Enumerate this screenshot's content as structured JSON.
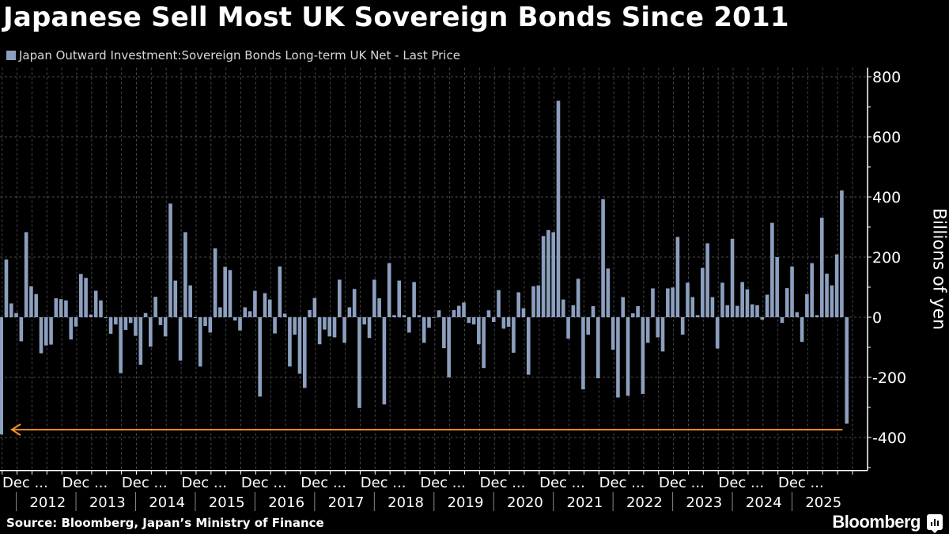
{
  "title": "Japanese Sell Most UK Sovereign Bonds Since 2011",
  "source": "Source: Bloomberg, Japan’s Ministry of Finance",
  "brand": "Bloomberg",
  "colors": {
    "bar": "#8c9fbf",
    "arrow": "#f0922b",
    "background": "#000000",
    "grid": "#4a4a4a"
  },
  "chart_data": {
    "type": "bar",
    "title": "Japanese Sell Most UK Sovereign Bonds Since 2011",
    "legend": {
      "placement": "top-left",
      "entries": [
        "Japan Outward Investment:Sovereign Bonds Long-term UK Net - Last Price"
      ]
    },
    "series": [
      {
        "name": "Japan Outward Investment:Sovereign Bonds Long-term UK Net - Last Price",
        "values": [
          -390,
          192,
          46,
          14,
          -80,
          283,
          103,
          77,
          -120,
          -94,
          -91,
          63,
          60,
          56,
          -74,
          -31,
          144,
          131,
          9,
          88,
          56,
          -3,
          -55,
          -24,
          -186,
          -42,
          -19,
          -62,
          -158,
          14,
          -98,
          68,
          -26,
          -64,
          378,
          122,
          -144,
          283,
          106,
          -3,
          -164,
          -29,
          -51,
          229,
          33,
          168,
          157,
          -11,
          -44,
          33,
          20,
          88,
          -264,
          80,
          59,
          -54,
          169,
          12,
          -164,
          -58,
          -188,
          -235,
          24,
          64,
          -90,
          -41,
          -64,
          -67,
          125,
          -85,
          33,
          94,
          -302,
          -24,
          -69,
          125,
          63,
          -290,
          180,
          7,
          122,
          7,
          -51,
          117,
          7,
          -85,
          -35,
          0,
          23,
          -103,
          -200,
          24,
          38,
          49,
          -19,
          -24,
          -90,
          -169,
          23,
          -16,
          90,
          -38,
          -32,
          -118,
          83,
          30,
          -191,
          103,
          106,
          270,
          290,
          283,
          720,
          59,
          -71,
          40,
          128,
          -240,
          -58,
          37,
          -203,
          393,
          162,
          -108,
          -267,
          67,
          -261,
          13,
          37,
          -255,
          -85,
          96,
          -67,
          -114,
          96,
          99,
          267,
          -58,
          115,
          67,
          7,
          164,
          246,
          67,
          -104,
          115,
          40,
          261,
          38,
          117,
          93,
          43,
          40,
          -8,
          75,
          314,
          200,
          -19,
          97,
          169,
          17,
          -82,
          77,
          180,
          7,
          331,
          145,
          106,
          209,
          422,
          -354
        ]
      }
    ],
    "x_tick_labels": [
      "Dec ...",
      "Dec ...",
      "Dec ...",
      "Dec ...",
      "Dec ...",
      "Dec ...",
      "Dec ...",
      "Dec ...",
      "Dec ...",
      "Dec ...",
      "Dec ...",
      "Dec ...",
      "Dec ...",
      "Dec ..."
    ],
    "year_labels": [
      "2012",
      "2013",
      "2014",
      "2015",
      "2016",
      "2017",
      "2018",
      "2019",
      "2020",
      "2021",
      "2022",
      "2023",
      "2024",
      "2025"
    ],
    "ylabel": "Billions of yen",
    "y_ticks": [
      800,
      600,
      400,
      200,
      0,
      -200,
      -400
    ],
    "ylim": [
      -510,
      830
    ],
    "y_axis_side": "right",
    "grid": true,
    "annotation": {
      "type": "arrow",
      "value": -374,
      "direction": "left",
      "note": "points back to the first bar"
    }
  }
}
